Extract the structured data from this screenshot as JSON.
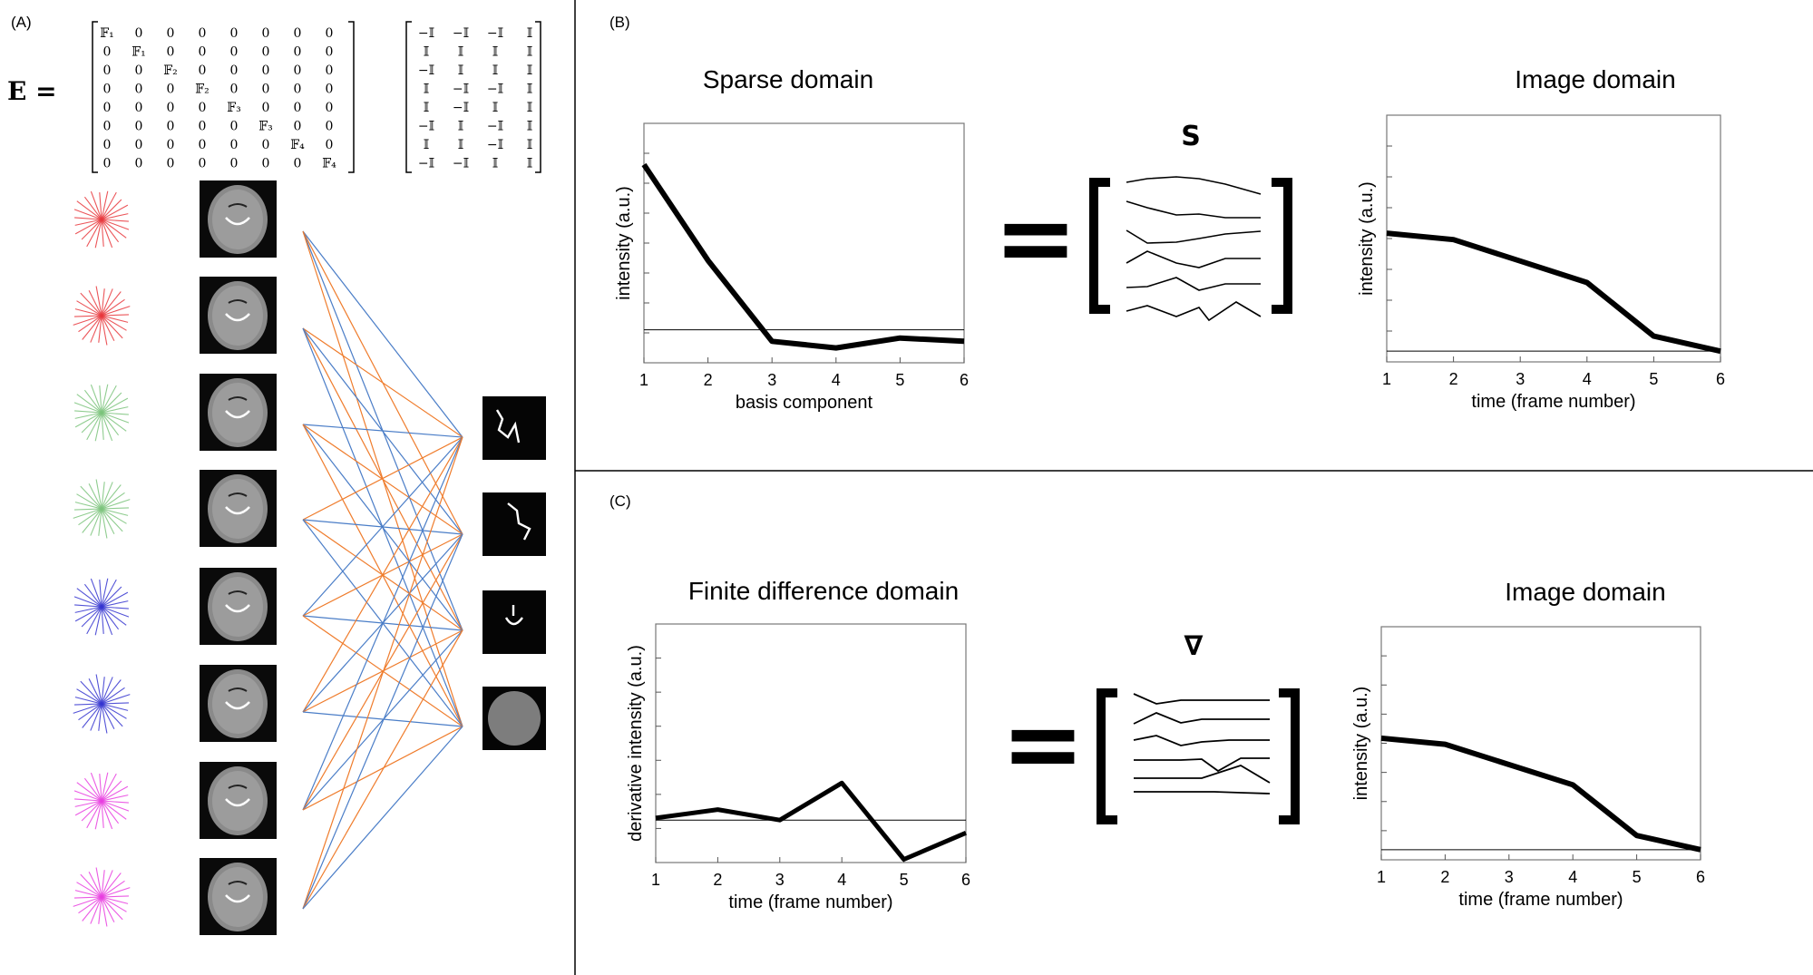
{
  "panels": {
    "a": "(A)",
    "b": "(B)",
    "c": "(C)"
  },
  "matrix": {
    "lhs": "E =",
    "left_rows": [
      [
        "𝔽₁",
        "0",
        "0",
        "0",
        "0",
        "0",
        "0",
        "0"
      ],
      [
        "0",
        "𝔽₁",
        "0",
        "0",
        "0",
        "0",
        "0",
        "0"
      ],
      [
        "0",
        "0",
        "𝔽₂",
        "0",
        "0",
        "0",
        "0",
        "0"
      ],
      [
        "0",
        "0",
        "0",
        "𝔽₂",
        "0",
        "0",
        "0",
        "0"
      ],
      [
        "0",
        "0",
        "0",
        "0",
        "𝔽₃",
        "0",
        "0",
        "0"
      ],
      [
        "0",
        "0",
        "0",
        "0",
        "0",
        "𝔽₃",
        "0",
        "0"
      ],
      [
        "0",
        "0",
        "0",
        "0",
        "0",
        "0",
        "𝔽₄",
        "0"
      ],
      [
        "0",
        "0",
        "0",
        "0",
        "0",
        "0",
        "0",
        "𝔽₄"
      ]
    ],
    "right_rows": [
      [
        "−𝕀",
        "−𝕀",
        "−𝕀",
        "𝕀"
      ],
      [
        "𝕀",
        "𝕀",
        "𝕀",
        "𝕀"
      ],
      [
        "−𝕀",
        "𝕀",
        "𝕀",
        "𝕀"
      ],
      [
        "𝕀",
        "−𝕀",
        "−𝕀",
        "𝕀"
      ],
      [
        "𝕀",
        "−𝕀",
        "𝕀",
        "𝕀"
      ],
      [
        "−𝕀",
        "𝕀",
        "−𝕀",
        "𝕀"
      ],
      [
        "𝕀",
        "𝕀",
        "−𝕀",
        "𝕀"
      ],
      [
        "−𝕀",
        "−𝕀",
        "𝕀",
        "𝕀"
      ]
    ]
  },
  "network": {
    "trajectory_colors": [
      "#e8383d",
      "#e8383d",
      "#7cc47c",
      "#7cc47c",
      "#3535d0",
      "#3535d0",
      "#e83ee0",
      "#e83ee0"
    ],
    "link_colors": {
      "blue": "#4a7dc7",
      "orange": "#ef7c2c"
    }
  },
  "symbols": {
    "equals_b": "=",
    "equals_c": "=",
    "s": "S",
    "nabla": "∇"
  },
  "chart_data": [
    {
      "type": "line",
      "title": "Sparse domain",
      "xlabel": "basis component",
      "ylabel": "intensity (a.u.)",
      "x": [
        1,
        2,
        3,
        4,
        5,
        6
      ],
      "values": [
        1.0,
        0.42,
        -0.07,
        -0.11,
        -0.05,
        -0.07
      ],
      "baseline": 0,
      "xlim": [
        1,
        6
      ],
      "ylim": [
        -0.2,
        1.25
      ]
    },
    {
      "type": "line",
      "title": "Image domain",
      "xlabel": "time (frame number)",
      "ylabel": "intensity (a.u.)",
      "x": [
        1,
        2,
        3,
        4,
        5,
        6
      ],
      "values": [
        0.55,
        0.52,
        0.42,
        0.32,
        0.07,
        0.0
      ],
      "baseline": 0,
      "xlim": [
        1,
        6
      ],
      "ylim": [
        -0.05,
        1.1
      ]
    },
    {
      "type": "line",
      "title": "Finite difference domain",
      "xlabel": "time (frame number)",
      "ylabel": "derivative intensity (a.u.)",
      "x": [
        1,
        2,
        3,
        4,
        5,
        6
      ],
      "values": [
        0.02,
        0.1,
        0.0,
        0.35,
        -0.37,
        -0.12
      ],
      "baseline": 0,
      "xlim": [
        1,
        6
      ],
      "ylim": [
        -0.4,
        1.85
      ]
    },
    {
      "type": "line",
      "title": "Image domain",
      "xlabel": "time (frame number)",
      "ylabel": "intensity (a.u.)",
      "x": [
        1,
        2,
        3,
        4,
        5,
        6
      ],
      "values": [
        0.55,
        0.52,
        0.42,
        0.32,
        0.07,
        0.0
      ],
      "baseline": 0,
      "xlim": [
        1,
        6
      ],
      "ylim": [
        -0.05,
        1.1
      ]
    }
  ]
}
